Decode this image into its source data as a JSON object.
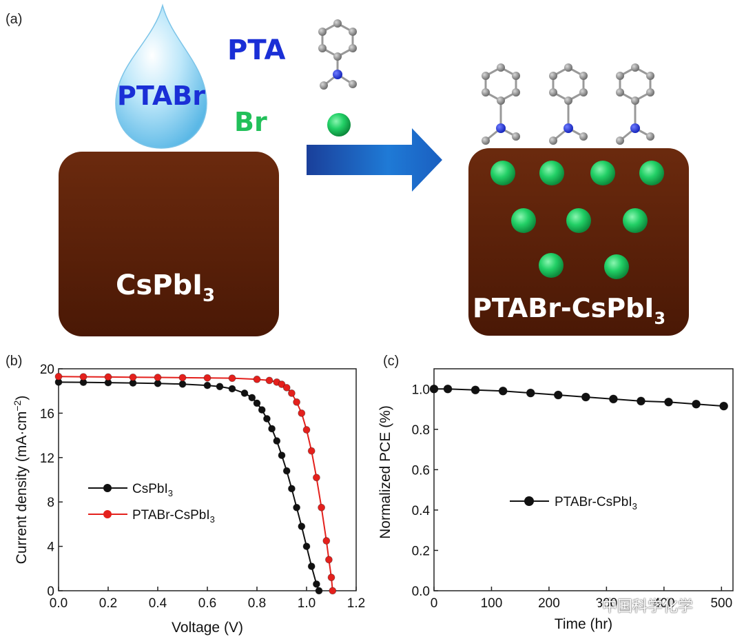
{
  "panel_a": {
    "panel_label": "(a)",
    "left_block_label": "CsPbI",
    "left_block_sub": "3",
    "drop_label": "PTABr",
    "pta_label": "PTA",
    "br_label": "Br",
    "right_block_label": "PTABr-CsPbI",
    "right_block_sub": "3",
    "colors": {
      "block": "#5a1f08",
      "drop": "#9fd8f2",
      "pta_text": "#1a2fd6",
      "br_text": "#22c05a",
      "arrow": "#1f6fc8",
      "ball": "#2bd46a"
    }
  },
  "panel_b": {
    "panel_label": "(b)",
    "xlabel": "Voltage (V)",
    "ylabel": "Current density (mA·cm",
    "ylabel_sup": "−2",
    "ylabel_end": ")",
    "xticks": [
      "0.0",
      "0.2",
      "0.4",
      "0.6",
      "0.8",
      "1.0",
      "1.2"
    ],
    "yticks": [
      "0",
      "4",
      "8",
      "12",
      "16",
      "20"
    ],
    "legend": [
      {
        "name": "CsPbI",
        "sub": "3",
        "color": "#111111"
      },
      {
        "name": "PTABr-CsPbI",
        "sub": "3",
        "color": "#e4201c"
      }
    ]
  },
  "panel_c": {
    "panel_label": "(c)",
    "xlabel": "Time (hr)",
    "ylabel": "Normalized PCE (%)",
    "xticks": [
      "0",
      "100",
      "200",
      "300",
      "400",
      "500"
    ],
    "yticks": [
      "0.0",
      "0.2",
      "0.4",
      "0.6",
      "0.8",
      "1.0"
    ],
    "legend": {
      "name": "PTABr-CsPbI",
      "sub": "3"
    }
  },
  "watermark": {
    "text": "中国科学化学"
  },
  "chart_data": [
    {
      "type": "line",
      "xlabel": "Voltage (V)",
      "ylabel": "Current density (mA·cm−2)",
      "xlim": [
        0,
        1.2
      ],
      "ylim": [
        0,
        20
      ],
      "legend_position": "center-left",
      "series": [
        {
          "name": "CsPbI3",
          "color": "#111111",
          "x": [
            0.0,
            0.1,
            0.2,
            0.3,
            0.4,
            0.5,
            0.6,
            0.65,
            0.7,
            0.75,
            0.78,
            0.8,
            0.82,
            0.84,
            0.86,
            0.88,
            0.9,
            0.92,
            0.94,
            0.96,
            0.98,
            1.0,
            1.02,
            1.04,
            1.05
          ],
          "y": [
            18.8,
            18.78,
            18.75,
            18.72,
            18.68,
            18.62,
            18.5,
            18.4,
            18.2,
            17.8,
            17.4,
            16.9,
            16.3,
            15.5,
            14.6,
            13.5,
            12.2,
            10.8,
            9.2,
            7.5,
            5.8,
            4.0,
            2.2,
            0.6,
            0.0
          ]
        },
        {
          "name": "PTABr-CsPbI3",
          "color": "#e4201c",
          "x": [
            0.0,
            0.1,
            0.2,
            0.3,
            0.4,
            0.5,
            0.6,
            0.7,
            0.8,
            0.85,
            0.88,
            0.9,
            0.92,
            0.94,
            0.96,
            0.98,
            1.0,
            1.02,
            1.04,
            1.06,
            1.08,
            1.09,
            1.1,
            1.105
          ],
          "y": [
            19.3,
            19.28,
            19.26,
            19.24,
            19.22,
            19.2,
            19.18,
            19.15,
            19.05,
            18.95,
            18.8,
            18.6,
            18.3,
            17.8,
            17.0,
            16.0,
            14.5,
            12.6,
            10.2,
            7.5,
            4.5,
            2.8,
            1.2,
            0.0
          ]
        }
      ]
    },
    {
      "type": "line",
      "xlabel": "Time (hr)",
      "ylabel": "Normalized PCE (%)",
      "xlim": [
        0,
        520
      ],
      "ylim": [
        0,
        1.1
      ],
      "legend_position": "center",
      "series": [
        {
          "name": "PTABr-CsPbI3",
          "color": "#111111",
          "x": [
            0,
            24,
            72,
            120,
            168,
            216,
            264,
            312,
            360,
            408,
            456,
            504
          ],
          "y": [
            1.0,
            1.0,
            0.995,
            0.99,
            0.98,
            0.97,
            0.96,
            0.95,
            0.94,
            0.935,
            0.925,
            0.915
          ]
        }
      ]
    }
  ]
}
